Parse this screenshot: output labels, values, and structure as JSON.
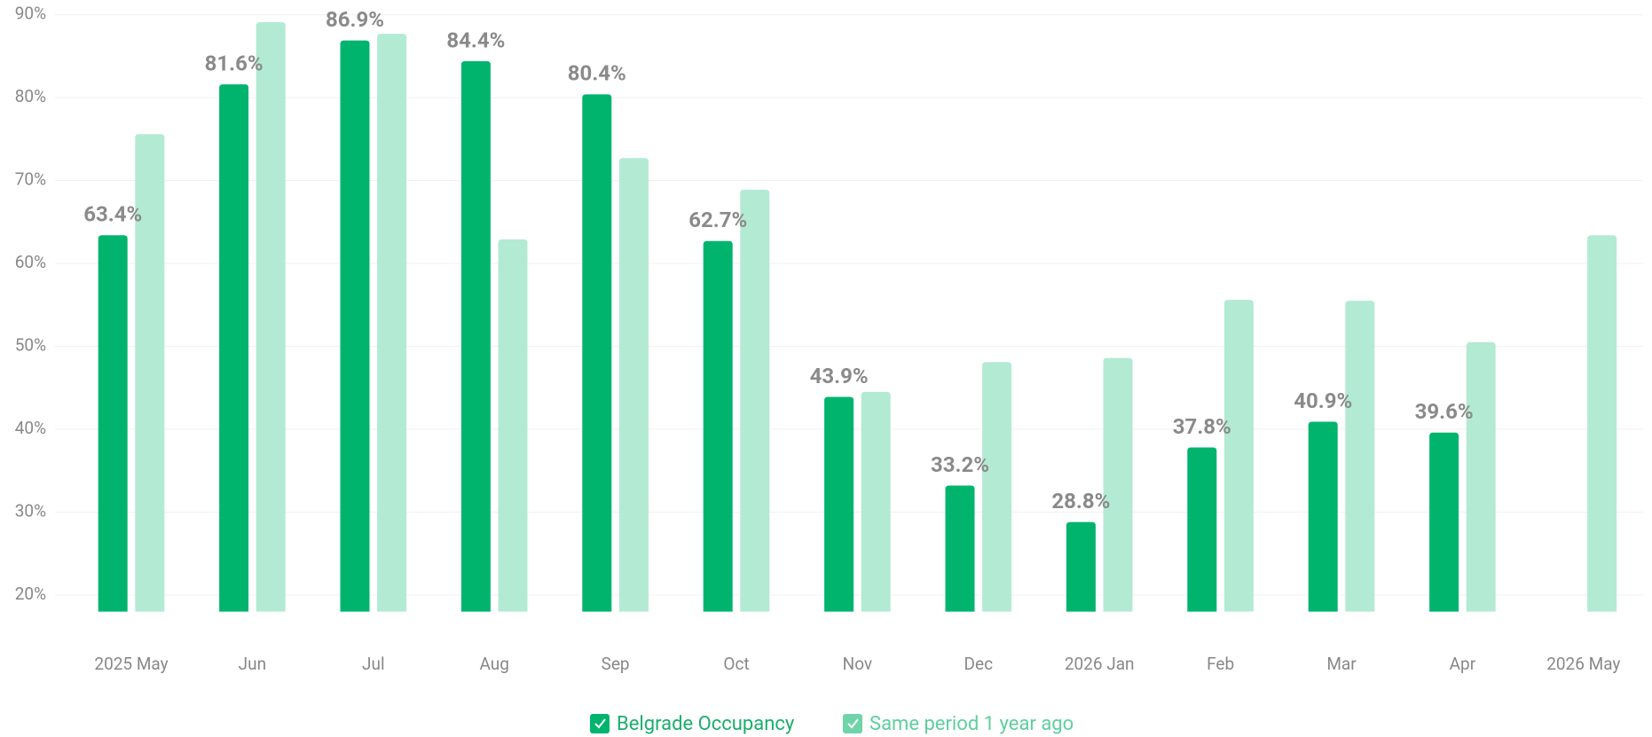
{
  "chart_data": {
    "type": "bar",
    "categories": [
      "2025 May",
      "Jun",
      "Jul",
      "Aug",
      "Sep",
      "Oct",
      "Nov",
      "Dec",
      "2026 Jan",
      "Feb",
      "Mar",
      "Apr",
      "2026 May"
    ],
    "series": [
      {
        "name": "Belgrade Occupancy",
        "color": "#00b46e",
        "values": [
          63.4,
          81.6,
          86.9,
          84.4,
          80.4,
          62.7,
          43.9,
          33.2,
          28.8,
          37.8,
          40.9,
          39.6,
          null
        ],
        "value_labels": [
          "63.4%",
          "81.6%",
          "86.9%",
          "84.4%",
          "80.4%",
          "62.7%",
          "43.9%",
          "33.2%",
          "28.8%",
          "37.8%",
          "40.9%",
          "39.6%",
          null
        ]
      },
      {
        "name": "Same period 1 year ago",
        "color": "#b3ead4",
        "values": [
          75.6,
          89.1,
          87.7,
          62.9,
          72.7,
          68.9,
          44.5,
          48.1,
          48.6,
          55.6,
          55.5,
          50.5,
          63.4
        ]
      }
    ],
    "ylim": [
      18,
      90
    ],
    "yticks": [
      {
        "value": 20,
        "label": "20%"
      },
      {
        "value": 30,
        "label": "30%"
      },
      {
        "value": 40,
        "label": "40%"
      },
      {
        "value": 50,
        "label": "50%"
      },
      {
        "value": 60,
        "label": "60%"
      },
      {
        "value": 70,
        "label": "70%"
      },
      {
        "value": 80,
        "label": "80%"
      },
      {
        "value": 90,
        "label": "90%"
      }
    ],
    "grid": true
  }
}
